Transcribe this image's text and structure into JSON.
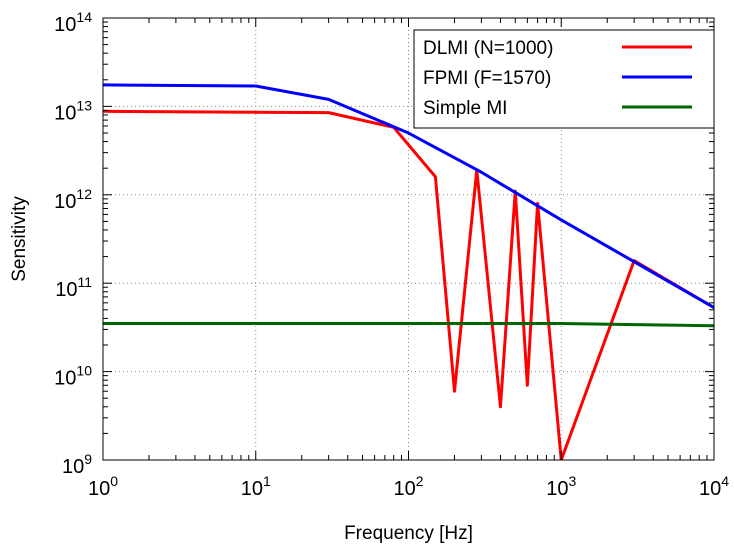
{
  "chart_data": {
    "type": "line",
    "title": "",
    "xlabel": "Frequency [Hz]",
    "ylabel": "Sensitivity",
    "xscale": "log",
    "yscale": "log",
    "xlim": [
      1,
      10000
    ],
    "ylim": [
      1000000000,
      100000000000000
    ],
    "grid": true,
    "legend_position": "top-right",
    "x_ticks": [
      {
        "base": "10",
        "exp": "0"
      },
      {
        "base": "10",
        "exp": "1"
      },
      {
        "base": "10",
        "exp": "2"
      },
      {
        "base": "10",
        "exp": "3"
      },
      {
        "base": "10",
        "exp": "4"
      }
    ],
    "y_ticks": [
      {
        "base": "10",
        "exp": "9"
      },
      {
        "base": "10",
        "exp": "10"
      },
      {
        "base": "10",
        "exp": "11"
      },
      {
        "base": "10",
        "exp": "12"
      },
      {
        "base": "10",
        "exp": "13"
      },
      {
        "base": "10",
        "exp": "14"
      }
    ],
    "series": [
      {
        "name": "DLMI (N=1000)",
        "color": "#ff0000",
        "points": [
          {
            "x": 1,
            "y": 8800000000000
          },
          {
            "x": 30,
            "y": 8500000000000
          },
          {
            "x": 80,
            "y": 5800000000000
          },
          {
            "x": 150,
            "y": 1600000000000
          },
          {
            "x": 200,
            "y": 6000000000
          },
          {
            "x": 280,
            "y": 1900000000000
          },
          {
            "x": 400,
            "y": 4000000000
          },
          {
            "x": 500,
            "y": 1100000000000
          },
          {
            "x": 600,
            "y": 7000000000
          },
          {
            "x": 700,
            "y": 800000000000
          },
          {
            "x": 1000,
            "y": 1000000000
          },
          {
            "x": 3000,
            "y": 180000000000
          },
          {
            "x": 10000,
            "y": 53000000000
          }
        ]
      },
      {
        "name": "FPMI (F=1570)",
        "color": "#0000ff",
        "points": [
          {
            "x": 1,
            "y": 17500000000000
          },
          {
            "x": 10,
            "y": 17000000000000
          },
          {
            "x": 30,
            "y": 12000000000000
          },
          {
            "x": 100,
            "y": 5000000000000
          },
          {
            "x": 300,
            "y": 1800000000000
          },
          {
            "x": 1000,
            "y": 520000000000
          },
          {
            "x": 3000,
            "y": 175000000000
          },
          {
            "x": 10000,
            "y": 53000000000
          }
        ]
      },
      {
        "name": "Simple MI",
        "color": "#006400",
        "points": [
          {
            "x": 1,
            "y": 35000000000
          },
          {
            "x": 1000,
            "y": 35000000000
          },
          {
            "x": 3000,
            "y": 34000000000
          },
          {
            "x": 10000,
            "y": 33000000000
          }
        ]
      }
    ]
  }
}
